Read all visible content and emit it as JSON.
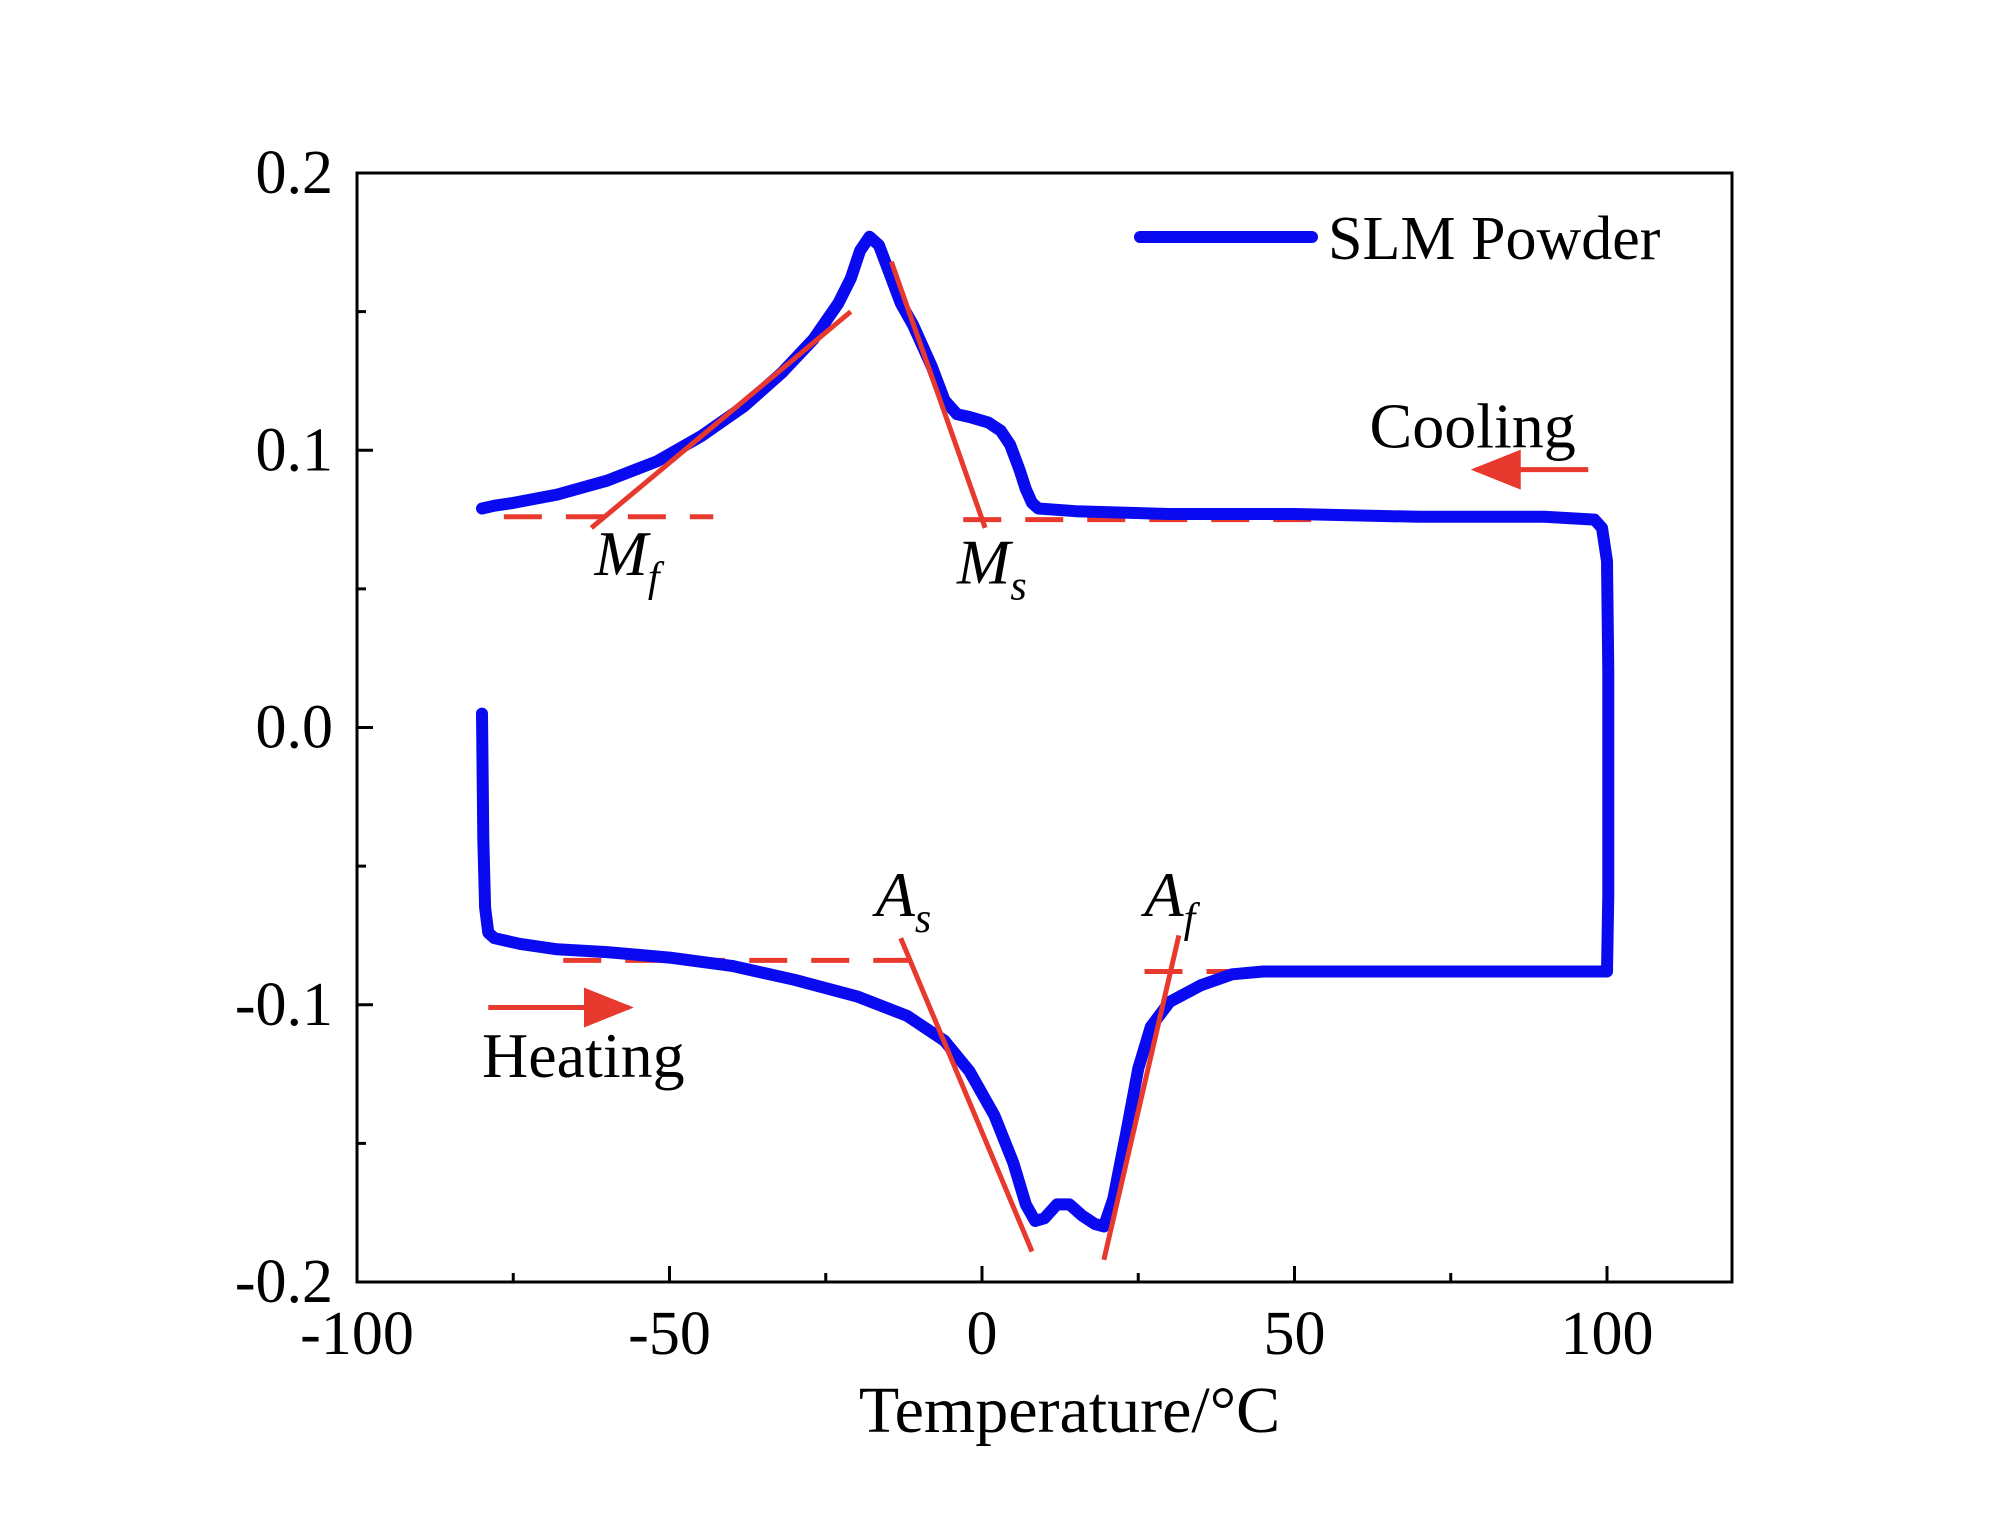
{
  "chart_data": {
    "type": "line",
    "title": "",
    "xlabel": "Temperature/°C",
    "ylabel": "",
    "xlim": [
      -100,
      120
    ],
    "ylim": [
      -0.2,
      0.2
    ],
    "x_ticks": [
      -100,
      -50,
      0,
      50,
      100
    ],
    "x_tick_labels": [
      "-100",
      "-50",
      "0",
      "50",
      "100"
    ],
    "y_ticks": [
      -0.2,
      -0.1,
      0.0,
      0.1,
      0.2
    ],
    "y_tick_labels": [
      "-0.2",
      "-0.1",
      "0.0",
      "0.1",
      "0.2"
    ],
    "grid": false,
    "legend": {
      "position": "top-right",
      "entries": [
        "SLM Powder"
      ]
    },
    "series": [
      {
        "name": "SLM Powder",
        "color": "#0a0af0",
        "points": [
          [
            -80,
            0.005
          ],
          [
            -79.8,
            -0.04
          ],
          [
            -79.5,
            -0.065
          ],
          [
            -79,
            -0.074
          ],
          [
            -78,
            -0.076
          ],
          [
            -74,
            -0.078
          ],
          [
            -68,
            -0.08
          ],
          [
            -60,
            -0.081
          ],
          [
            -50,
            -0.083
          ],
          [
            -40,
            -0.086
          ],
          [
            -30,
            -0.091
          ],
          [
            -20,
            -0.097
          ],
          [
            -12,
            -0.104
          ],
          [
            -6,
            -0.113
          ],
          [
            -2,
            -0.124
          ],
          [
            2,
            -0.14
          ],
          [
            5,
            -0.157
          ],
          [
            7,
            -0.172
          ],
          [
            8.5,
            -0.178
          ],
          [
            10,
            -0.177
          ],
          [
            12,
            -0.172
          ],
          [
            14,
            -0.172
          ],
          [
            16,
            -0.176
          ],
          [
            18,
            -0.179
          ],
          [
            19.5,
            -0.18
          ],
          [
            21,
            -0.17
          ],
          [
            23,
            -0.147
          ],
          [
            25,
            -0.123
          ],
          [
            27,
            -0.108
          ],
          [
            30,
            -0.099
          ],
          [
            35,
            -0.093
          ],
          [
            40,
            -0.089
          ],
          [
            45,
            -0.088
          ],
          [
            60,
            -0.088
          ],
          [
            80,
            -0.088
          ],
          [
            95,
            -0.088
          ],
          [
            100,
            -0.088
          ],
          [
            100.2,
            -0.06
          ],
          [
            100.2,
            0.02
          ],
          [
            100,
            0.06
          ],
          [
            99.2,
            0.072
          ],
          [
            98,
            0.075
          ],
          [
            90,
            0.076
          ],
          [
            70,
            0.076
          ],
          [
            50,
            0.077
          ],
          [
            30,
            0.077
          ],
          [
            15,
            0.078
          ],
          [
            9,
            0.079
          ],
          [
            8,
            0.081
          ],
          [
            7,
            0.086
          ],
          [
            6,
            0.093
          ],
          [
            4.5,
            0.102
          ],
          [
            3,
            0.107
          ],
          [
            1,
            0.11
          ],
          [
            -2,
            0.112
          ],
          [
            -4,
            0.113
          ],
          [
            -6,
            0.118
          ],
          [
            -8,
            0.13
          ],
          [
            -11,
            0.145
          ],
          [
            -13,
            0.153
          ],
          [
            -15,
            0.165
          ],
          [
            -16.5,
            0.174
          ],
          [
            -18,
            0.177
          ],
          [
            -19.5,
            0.172
          ],
          [
            -21,
            0.162
          ],
          [
            -23,
            0.153
          ],
          [
            -27,
            0.14
          ],
          [
            -32,
            0.128
          ],
          [
            -38,
            0.116
          ],
          [
            -45,
            0.105
          ],
          [
            -52,
            0.096
          ],
          [
            -60,
            0.089
          ],
          [
            -68,
            0.084
          ],
          [
            -75,
            0.081
          ],
          [
            -78,
            0.08
          ],
          [
            -80,
            0.079
          ]
        ]
      }
    ],
    "tangent_lines": [
      {
        "name": "Mf-tangent",
        "from": [
          -62.5,
          0.072
        ],
        "to": [
          -21,
          0.15
        ]
      },
      {
        "name": "Ms-tangent",
        "from": [
          -14.5,
          0.168
        ],
        "to": [
          0.5,
          0.072
        ]
      },
      {
        "name": "As-tangent",
        "from": [
          -13,
          -0.076
        ],
        "to": [
          8,
          -0.189
        ]
      },
      {
        "name": "Af-tangent",
        "from": [
          19.5,
          -0.192
        ],
        "to": [
          31.5,
          -0.075
        ]
      }
    ],
    "baselines": [
      {
        "name": "cooling-baseline-left",
        "from": [
          -76.5,
          0.076
        ],
        "to": [
          -43,
          0.076
        ]
      },
      {
        "name": "cooling-baseline-right",
        "from": [
          -3,
          0.075
        ],
        "to": [
          54,
          0.075
        ]
      },
      {
        "name": "heating-baseline-left",
        "from": [
          -67,
          -0.084
        ],
        "to": [
          -8,
          -0.084
        ]
      },
      {
        "name": "heating-baseline-right",
        "from": [
          26,
          -0.088
        ],
        "to": [
          72,
          -0.088
        ]
      }
    ],
    "transition_markers": [
      {
        "main": "M",
        "sub": "f",
        "x": -62,
        "y": 0.055
      },
      {
        "main": "M",
        "sub": "s",
        "x": -4,
        "y": 0.052
      },
      {
        "main": "A",
        "sub": "s",
        "x": -17,
        "y": -0.068
      },
      {
        "main": "A",
        "sub": "f",
        "x": 26,
        "y": -0.068
      }
    ],
    "annotations": [
      {
        "text": "Cooling",
        "x": 62,
        "y": 0.101
      },
      {
        "text": "Heating",
        "x": -80,
        "y": -0.126
      }
    ],
    "arrows": [
      {
        "direction": "left",
        "from": [
          97,
          0.093
        ],
        "to": [
          79,
          0.093
        ]
      },
      {
        "direction": "right",
        "from": [
          -79,
          -0.101
        ],
        "to": [
          -56.5,
          -0.101
        ]
      }
    ],
    "annotation_color": "#e8392e"
  }
}
